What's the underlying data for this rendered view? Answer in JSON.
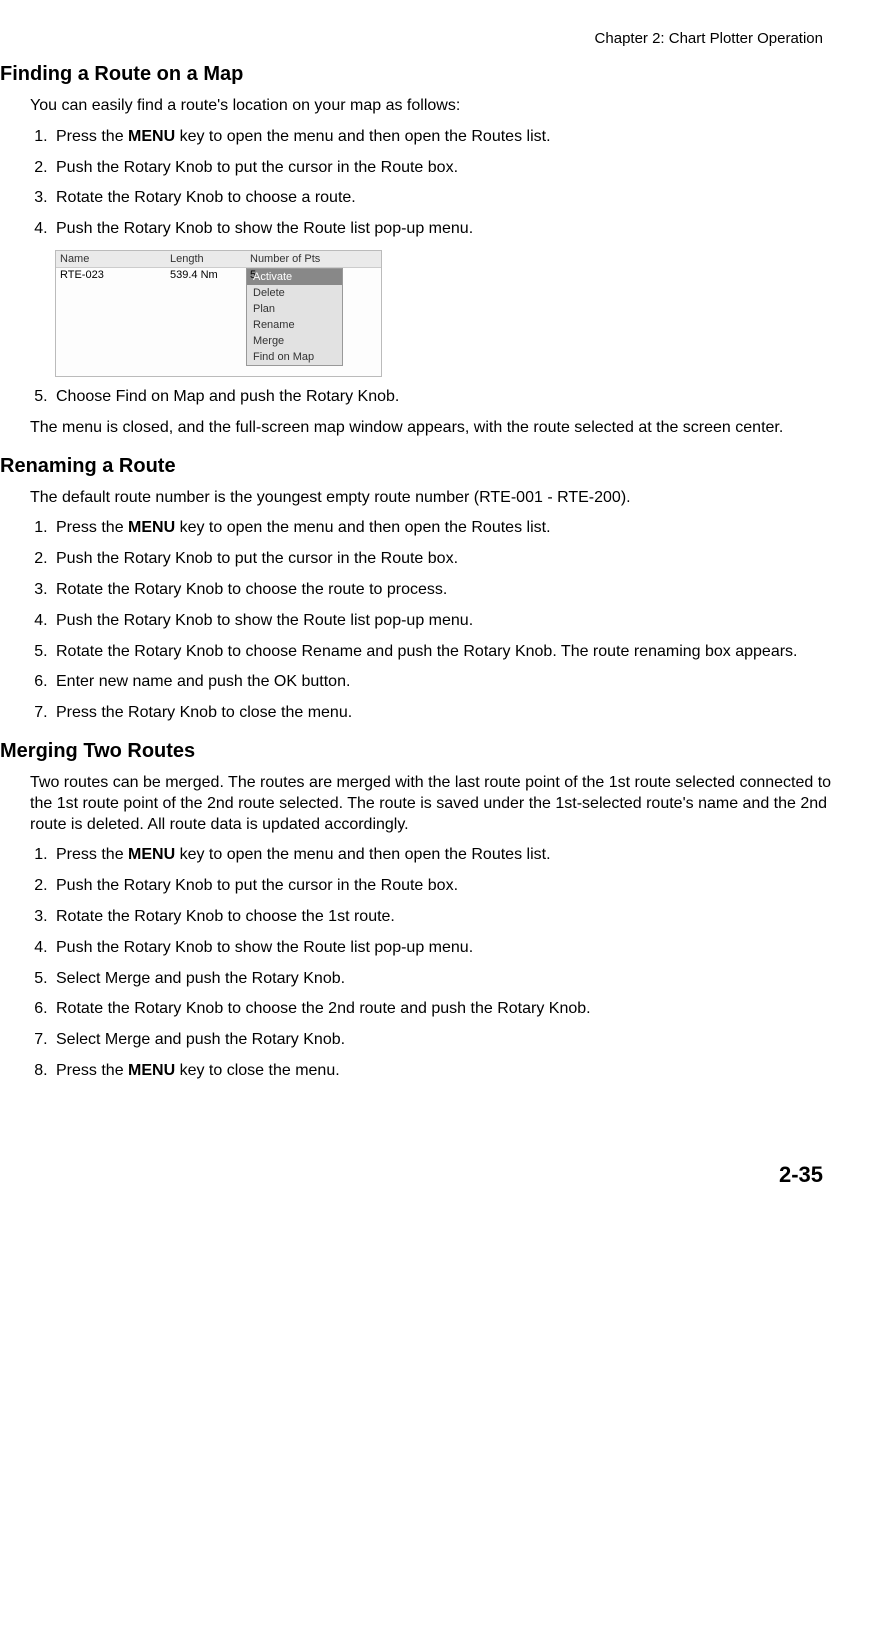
{
  "header": {
    "chapter": "Chapter 2: Chart Plotter Operation"
  },
  "section1": {
    "title": "Finding a Route on a Map",
    "intro": "You can easily find a route's location on your map as follows:",
    "steps": [
      {
        "pre": "Press the ",
        "bold": "MENU",
        "post": " key to open the menu and then open the Routes list."
      },
      {
        "pre": "Push the Rotary Knob to put the cursor in the Route box.",
        "bold": "",
        "post": ""
      },
      {
        "pre": "Rotate the Rotary Knob to choose a route.",
        "bold": "",
        "post": ""
      },
      {
        "pre": "Push the Rotary Knob to show the Route list pop-up menu.",
        "bold": "",
        "post": ""
      }
    ],
    "screenshot": {
      "headers": {
        "name": "Name",
        "length": "Length",
        "pts": "Number of Pts"
      },
      "row": {
        "name": "RTE-023",
        "length": "539.4 Nm",
        "pts": "5"
      },
      "popup": [
        "Activate",
        "Delete",
        "Plan",
        "Rename",
        "Merge",
        "Find on Map"
      ],
      "selected_index": 0
    },
    "step5": "Choose Find on Map and push the Rotary Knob.",
    "conclusion": "The menu is closed, and the full-screen map window appears, with the route selected at the screen center."
  },
  "section2": {
    "title": "Renaming a Route",
    "intro": "The default route number is the youngest empty route number (RTE-001 - RTE-200).",
    "steps": [
      {
        "pre": "Press the ",
        "bold": "MENU",
        "post": " key to open the menu and then open the Routes list."
      },
      {
        "pre": "Push the Rotary Knob to put the cursor in the Route box.",
        "bold": "",
        "post": ""
      },
      {
        "pre": "Rotate the Rotary Knob to choose the route to process.",
        "bold": "",
        "post": ""
      },
      {
        "pre": "Push the Rotary Knob to show the Route list pop-up menu.",
        "bold": "",
        "post": ""
      },
      {
        "pre": "Rotate the Rotary Knob to choose Rename and push the Rotary Knob. The route renaming box appears.",
        "bold": "",
        "post": ""
      },
      {
        "pre": "Enter new name and push the OK button.",
        "bold": "",
        "post": ""
      },
      {
        "pre": "Press the Rotary Knob to close the menu.",
        "bold": "",
        "post": ""
      }
    ]
  },
  "section3": {
    "title": "Merging Two Routes",
    "intro": "Two routes can be merged. The routes are merged with the last route point of the 1st route selected connected to the 1st route point of the 2nd route selected. The route is saved under the 1st-selected route's name and the 2nd route is deleted. All route data is updated accordingly.",
    "steps": [
      {
        "pre": "Press the ",
        "bold": "MENU",
        "post": " key to open the menu and then open the Routes list."
      },
      {
        "pre": "Push the Rotary Knob to put the cursor in the Route box.",
        "bold": "",
        "post": ""
      },
      {
        "pre": "Rotate the Rotary Knob to choose the 1st route.",
        "bold": "",
        "post": ""
      },
      {
        "pre": "Push the Rotary Knob to show the Route list pop-up menu.",
        "bold": "",
        "post": ""
      },
      {
        "pre": "Select Merge and push the Rotary Knob.",
        "bold": "",
        "post": ""
      },
      {
        "pre": "Rotate the Rotary Knob to choose the 2nd route and push the Rotary Knob.",
        "bold": "",
        "post": ""
      },
      {
        "pre": "Select Merge and push the Rotary Knob.",
        "bold": "",
        "post": ""
      },
      {
        "pre": "Press the ",
        "bold": "MENU",
        "post": " key to close the menu."
      }
    ]
  },
  "footer": {
    "page": "2-35"
  }
}
